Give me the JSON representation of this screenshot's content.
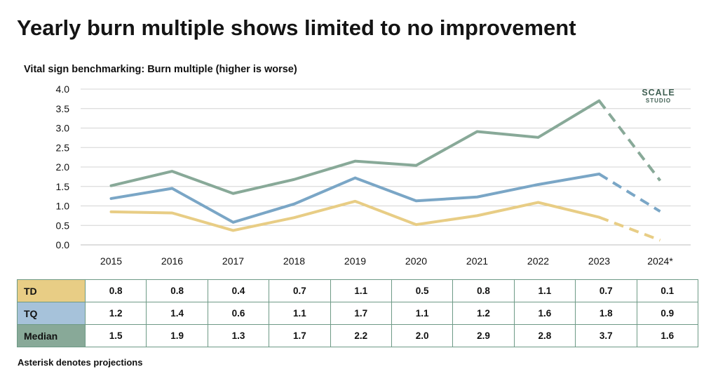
{
  "title": "Yearly burn multiple shows limited to no improvement",
  "subtitle": "Vital sign benchmarking: Burn multiple (higher is worse)",
  "footnote": "Asterisk denotes projections",
  "logo": {
    "line1": "SCALE",
    "line2": "STUDIO"
  },
  "colors": {
    "TD": "#e8cd85",
    "TQ": "#7aa6c6",
    "Median": "#88a998",
    "table_border": "#6e9a86",
    "grid": "#d4d4d4"
  },
  "chart_data": {
    "type": "line",
    "categories": [
      "2015",
      "2016",
      "2017",
      "2018",
      "2019",
      "2020",
      "2021",
      "2022",
      "2023",
      "2024*"
    ],
    "projected_from_index": 8,
    "ylim": [
      0,
      4
    ],
    "yticks": [
      "0.0",
      "0.5",
      "1.0",
      "1.5",
      "2.0",
      "2.5",
      "3.0",
      "3.5",
      "4.0"
    ],
    "grid": true,
    "series": [
      {
        "name": "TD",
        "color": "#e8cd85",
        "values": [
          0.85,
          0.82,
          0.37,
          0.7,
          1.12,
          0.52,
          0.75,
          1.09,
          0.71,
          0.12
        ]
      },
      {
        "name": "TQ",
        "color": "#7aa6c6",
        "values": [
          1.19,
          1.45,
          0.58,
          1.05,
          1.72,
          1.13,
          1.23,
          1.55,
          1.82,
          0.86
        ]
      },
      {
        "name": "Median",
        "color": "#88a998",
        "values": [
          1.52,
          1.89,
          1.32,
          1.68,
          2.15,
          2.04,
          2.91,
          2.76,
          3.7,
          1.65
        ]
      }
    ]
  },
  "table": {
    "rows": [
      {
        "label": "TD",
        "color": "#e8cd85",
        "values": [
          "0.8",
          "0.8",
          "0.4",
          "0.7",
          "1.1",
          "0.5",
          "0.8",
          "1.1",
          "0.7",
          "0.1"
        ]
      },
      {
        "label": "TQ",
        "color": "#a6c2da",
        "values": [
          "1.2",
          "1.4",
          "0.6",
          "1.1",
          "1.7",
          "1.1",
          "1.2",
          "1.6",
          "1.8",
          "0.9"
        ]
      },
      {
        "label": "Median",
        "color": "#88a998",
        "values": [
          "1.5",
          "1.9",
          "1.3",
          "1.7",
          "2.2",
          "2.0",
          "2.9",
          "2.8",
          "3.7",
          "1.6"
        ]
      }
    ]
  }
}
